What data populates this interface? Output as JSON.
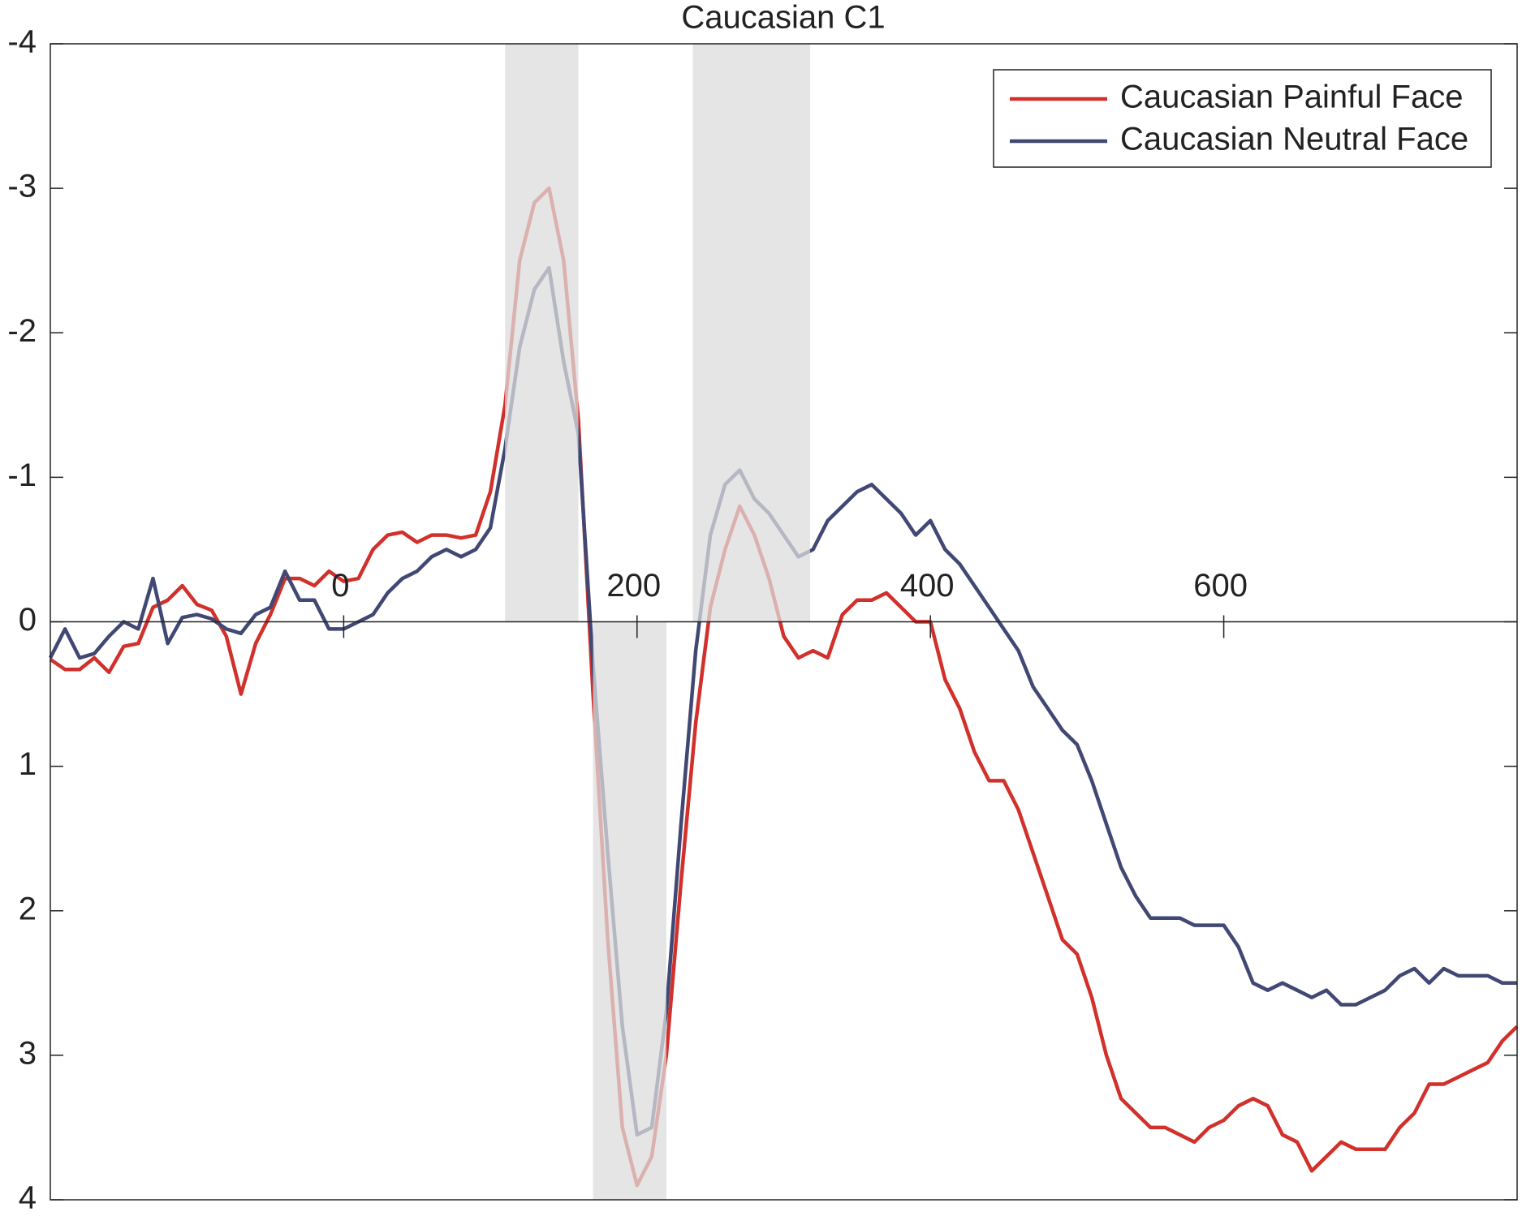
{
  "chart_data": {
    "type": "line",
    "title": "Caucasian C1",
    "x": [
      -200,
      -190,
      -180,
      -170,
      -160,
      -150,
      -140,
      -130,
      -120,
      -110,
      -100,
      -90,
      -80,
      -70,
      -60,
      -50,
      -40,
      -30,
      -20,
      -10,
      0,
      10,
      20,
      30,
      40,
      50,
      60,
      70,
      80,
      90,
      100,
      110,
      120,
      130,
      140,
      150,
      160,
      170,
      180,
      190,
      200,
      210,
      220,
      230,
      240,
      250,
      260,
      270,
      280,
      290,
      300,
      310,
      320,
      330,
      340,
      350,
      360,
      370,
      380,
      390,
      400,
      410,
      420,
      430,
      440,
      450,
      460,
      470,
      480,
      490,
      500,
      510,
      520,
      530,
      540,
      550,
      560,
      570,
      580,
      590,
      600,
      610,
      620,
      630,
      640,
      650,
      660,
      670,
      680,
      690,
      700,
      710,
      720,
      730,
      740,
      750,
      760,
      770,
      780,
      790,
      800
    ],
    "series": [
      {
        "name": "Caucasian Painful Face",
        "color": "#d1302b",
        "values": [
          0.26,
          0.33,
          0.33,
          0.25,
          0.35,
          0.17,
          0.15,
          -0.1,
          -0.15,
          -0.25,
          -0.12,
          -0.08,
          0.1,
          0.5,
          0.15,
          -0.05,
          -0.3,
          -0.3,
          -0.25,
          -0.35,
          -0.28,
          -0.3,
          -0.5,
          -0.6,
          -0.62,
          -0.55,
          -0.6,
          -0.6,
          -0.58,
          -0.6,
          -0.9,
          -1.5,
          -2.5,
          -2.9,
          -3.0,
          -2.5,
          -1.4,
          0.5,
          2.2,
          3.5,
          3.9,
          3.7,
          3.0,
          1.8,
          0.7,
          -0.1,
          -0.5,
          -0.8,
          -0.6,
          -0.3,
          0.1,
          0.25,
          0.2,
          0.25,
          -0.05,
          -0.15,
          -0.15,
          -0.2,
          -0.1,
          0,
          0,
          0.4,
          0.6,
          0.9,
          1.1,
          1.1,
          1.3,
          1.6,
          1.9,
          2.2,
          2.3,
          2.6,
          3.0,
          3.3,
          3.4,
          3.5,
          3.5,
          3.55,
          3.6,
          3.5,
          3.45,
          3.35,
          3.3,
          3.35,
          3.55,
          3.6,
          3.8,
          3.7,
          3.6,
          3.65,
          3.65,
          3.65,
          3.5,
          3.4,
          3.2,
          3.2,
          3.15,
          3.1,
          3.05,
          2.9,
          2.8
        ]
      },
      {
        "name": "Caucasian Neutral Face",
        "color": "#404873",
        "values": [
          0.25,
          0.05,
          0.25,
          0.22,
          0.1,
          0,
          0.05,
          -0.3,
          0.15,
          -0.03,
          -0.05,
          -0.02,
          0.05,
          0.08,
          -0.05,
          -0.1,
          -0.35,
          -0.15,
          -0.15,
          0.05,
          0.05,
          0,
          -0.05,
          -0.2,
          -0.3,
          -0.35,
          -0.45,
          -0.5,
          -0.45,
          -0.5,
          -0.65,
          -1.2,
          -1.9,
          -2.3,
          -2.45,
          -1.8,
          -1.3,
          0.3,
          1.6,
          2.8,
          3.55,
          3.5,
          2.7,
          1.4,
          0.2,
          -0.6,
          -0.95,
          -1.05,
          -0.85,
          -0.75,
          -0.6,
          -0.45,
          -0.5,
          -0.7,
          -0.8,
          -0.9,
          -0.95,
          -0.85,
          -0.75,
          -0.6,
          -0.7,
          -0.5,
          -0.4,
          -0.25,
          -0.1,
          0.05,
          0.2,
          0.45,
          0.6,
          0.75,
          0.85,
          1.1,
          1.4,
          1.7,
          1.9,
          2.05,
          2.05,
          2.05,
          2.1,
          2.1,
          2.1,
          2.25,
          2.5,
          2.55,
          2.5,
          2.55,
          2.6,
          2.55,
          2.65,
          2.65,
          2.6,
          2.55,
          2.45,
          2.4,
          2.5,
          2.4,
          2.45,
          2.45,
          2.45,
          2.5,
          2.5
        ]
      }
    ],
    "xlim": [
      -200,
      800
    ],
    "xticks": [
      0,
      200,
      400,
      600
    ],
    "ylim": [
      -4,
      4
    ],
    "yticks": [
      -4,
      -3,
      -2,
      -1,
      0,
      1,
      2,
      3,
      4
    ],
    "y_reversed": true,
    "shaded_regions": [
      {
        "x": [
          110,
          160
        ],
        "y": [
          -4,
          0
        ]
      },
      {
        "x": [
          170,
          220
        ],
        "y": [
          0,
          4
        ]
      },
      {
        "x": [
          238,
          318
        ],
        "y": [
          -4,
          0
        ]
      }
    ],
    "shade_color": "#dcdcdc",
    "legend": "upper right"
  }
}
